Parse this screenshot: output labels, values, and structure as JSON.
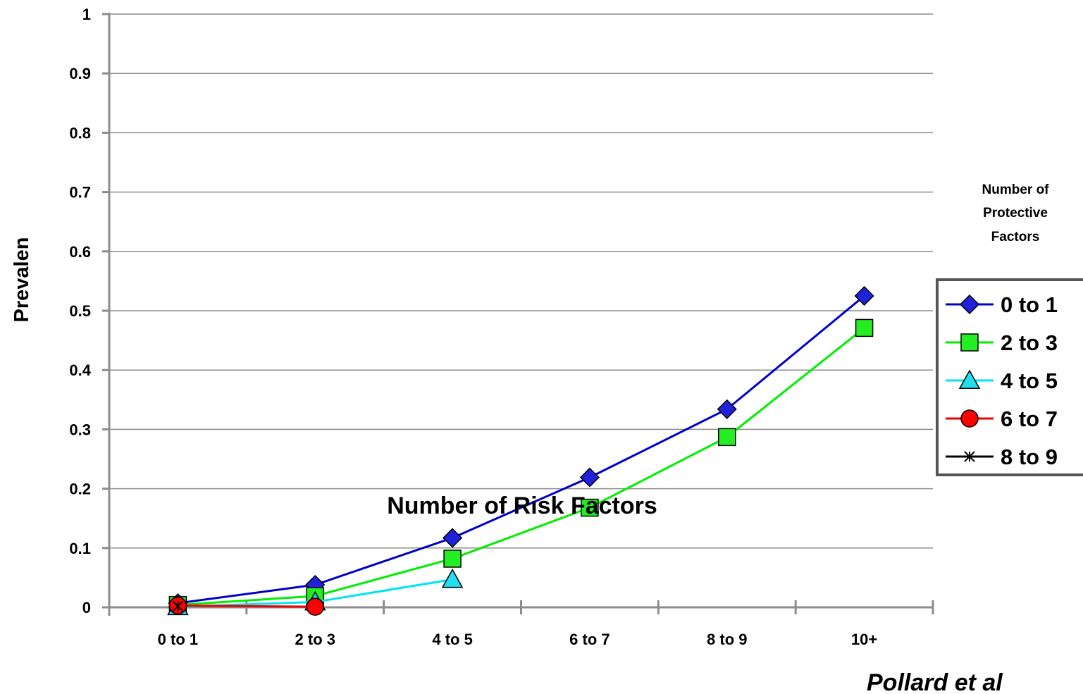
{
  "chart_data": {
    "type": "line",
    "title": "",
    "xlabel": "Number of Risk Factors",
    "ylabel": "Prevalen",
    "categories": [
      "0 to 1",
      "2 to 3",
      "4 to 5",
      "6 to 7",
      "8 to 9",
      "10+"
    ],
    "yticks": [
      "0",
      "0.1",
      "0.2",
      "0.3",
      "0.4",
      "0.5",
      "0.6",
      "0.7",
      "0.8",
      "0.9",
      "1"
    ],
    "ylim": [
      0,
      1
    ],
    "grid": true,
    "legend_position": "right",
    "legend_title": [
      "Number of",
      "Protective",
      "Factors"
    ],
    "credit": "Pollard et al",
    "series": [
      {
        "name": "0 to 1",
        "color": "#0000cc",
        "marker": "diamond",
        "marker_fill": "#2020dd",
        "values": [
          0.007,
          0.038,
          0.117,
          0.219,
          0.334,
          0.525
        ]
      },
      {
        "name": "2 to 3",
        "color": "#00ee00",
        "marker": "square",
        "marker_fill": "#22ee22",
        "values": [
          0.004,
          0.019,
          0.082,
          0.168,
          0.287,
          0.471
        ]
      },
      {
        "name": "4 to 5",
        "color": "#00e5ee",
        "marker": "triangle",
        "marker_fill": "#22ddee",
        "values": [
          0.001,
          0.009,
          0.047,
          null,
          null,
          null
        ]
      },
      {
        "name": "6 to 7",
        "color": "#ee0000",
        "marker": "circle",
        "marker_fill": "#ff0000",
        "values": [
          0.003,
          0.001,
          null,
          null,
          null,
          null
        ]
      },
      {
        "name": "8 to 9",
        "color": "#000000",
        "marker": "star",
        "marker_fill": "#000000",
        "values": [
          0.002,
          null,
          null,
          null,
          null,
          null
        ]
      }
    ]
  }
}
